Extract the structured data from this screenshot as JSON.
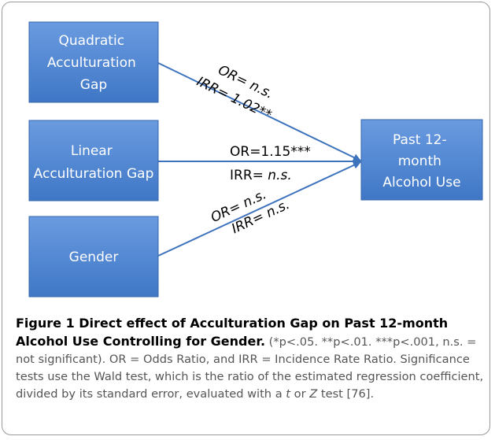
{
  "nodes": [
    {
      "lines": [
        "Quadratic",
        "Acculturation",
        "Gap"
      ]
    },
    {
      "lines": [
        "Linear",
        "Acculturation Gap"
      ]
    },
    {
      "lines": [
        "Gender"
      ]
    },
    {
      "lines": [
        "Past 12-",
        "month",
        "Alcohol Use"
      ]
    }
  ],
  "edges": [
    {
      "lines": [
        [
          "OR= ",
          "n.s."
        ],
        [
          "IRR= 1.02**"
        ]
      ]
    },
    {
      "lines": [
        [
          "OR=1.15***"
        ],
        [
          "IRR= ",
          "n.s."
        ]
      ]
    },
    {
      "lines": [
        [
          "OR= ",
          "n.s."
        ],
        [
          "IRR= ",
          "n.s."
        ]
      ]
    }
  ],
  "caption": {
    "title": "Figure 1 Direct effect of Acculturation Gap on Past 12-month Alcohol Use Controlling for Gender.",
    "parts": [
      " (*p<.05. **p<.01. ***p<.001, n.s. = not significant). OR = Odds Ratio, and IRR = Incidence Rate Ratio. Significance tests use the Wald test, which is the ratio of the estimated regression coefficient, divided by its standard error, evaluated with a ",
      "t",
      " or ",
      "Z",
      " test [76]."
    ]
  }
}
